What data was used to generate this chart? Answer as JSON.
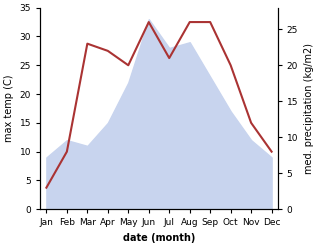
{
  "months": [
    "Jan",
    "Feb",
    "Mar",
    "Apr",
    "May",
    "Jun",
    "Jul",
    "Aug",
    "Sep",
    "Oct",
    "Nov",
    "Dec"
  ],
  "max_temp": [
    9,
    12,
    11,
    15,
    22,
    33,
    28,
    29,
    23,
    17,
    12,
    9
  ],
  "precipitation": [
    3,
    8,
    23,
    22,
    20,
    26,
    21,
    26,
    26,
    20,
    12,
    8
  ],
  "temp_ylim": [
    0,
    35
  ],
  "precip_ylim": [
    0,
    28.0
  ],
  "temp_yticks": [
    0,
    5,
    10,
    15,
    20,
    25,
    30,
    35
  ],
  "precip_yticks": [
    0,
    5,
    10,
    15,
    20,
    25
  ],
  "xlabel": "date (month)",
  "ylabel_left": "max temp (C)",
  "ylabel_right": "med. precipitation (kg/m2)",
  "fill_color": "#c8d4ee",
  "line_color": "#aa3333",
  "line_width": 1.5,
  "bg_color": "#ffffff",
  "label_fontsize": 7,
  "tick_fontsize": 6.5
}
